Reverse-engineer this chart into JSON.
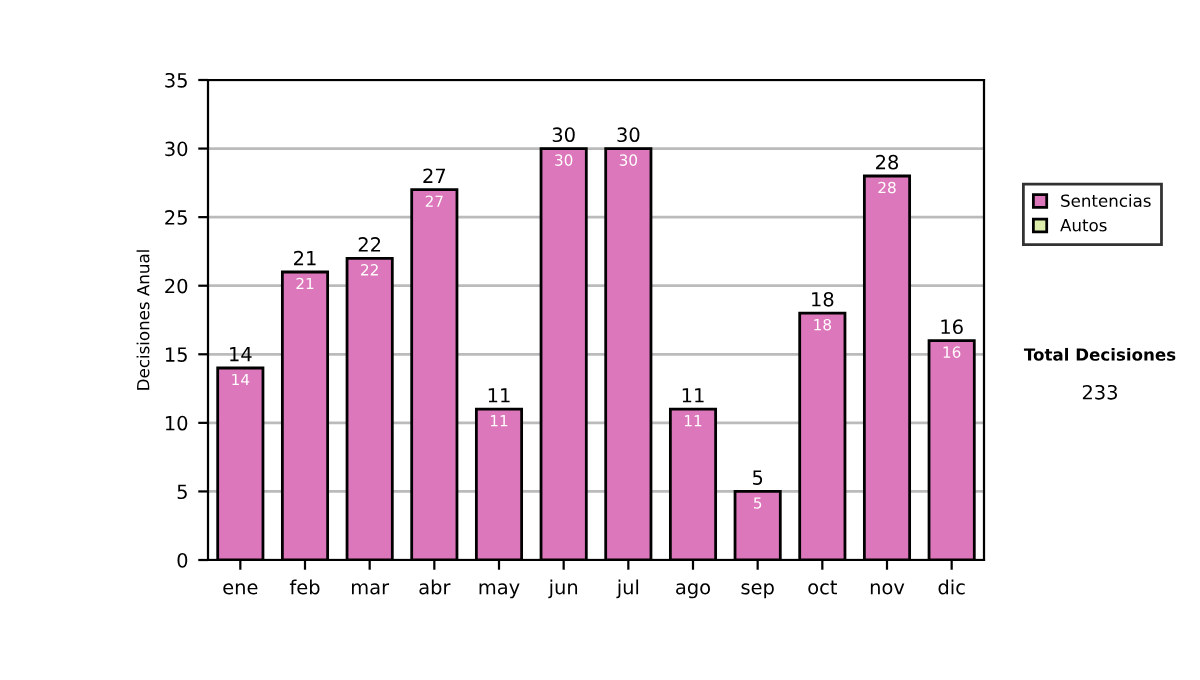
{
  "chart_data": {
    "type": "bar",
    "ylabel": "Decisiones Anual",
    "categories": [
      "ene",
      "feb",
      "mar",
      "abr",
      "may",
      "jun",
      "jul",
      "ago",
      "sep",
      "oct",
      "nov",
      "dic"
    ],
    "series": [
      {
        "name": "Sentencias",
        "color": "#dd77bb",
        "values": [
          14,
          21,
          22,
          27,
          11,
          30,
          30,
          11,
          5,
          18,
          28,
          16
        ]
      },
      {
        "name": "Autos",
        "color": "#ddeeaa",
        "values": [
          null,
          null,
          null,
          null,
          null,
          null,
          null,
          null,
          null,
          null,
          null,
          null
        ]
      }
    ],
    "data_labels": true,
    "totals": [
      "14",
      "21",
      "22",
      "27",
      "11",
      "30",
      "30",
      "11",
      "5",
      "18",
      "28",
      "16"
    ],
    "ylim": [
      0,
      35
    ],
    "yticks": [
      0,
      5,
      10,
      15,
      20,
      25,
      30,
      35
    ],
    "grid": "y",
    "legend": "right",
    "annotations": [
      "Total Decisiones",
      "233"
    ]
  }
}
